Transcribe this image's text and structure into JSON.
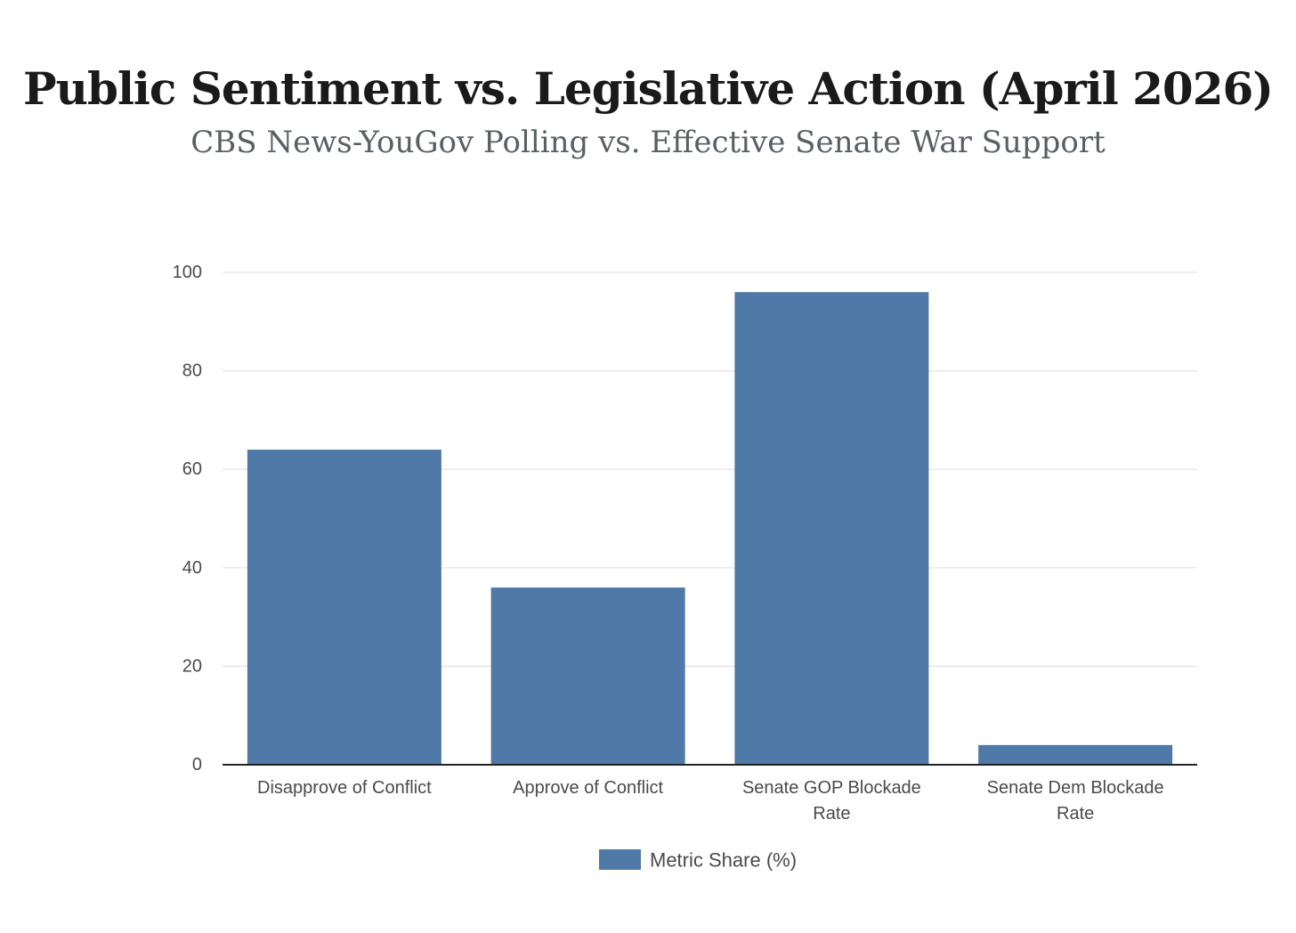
{
  "chart_data": {
    "type": "bar",
    "title": "Public Sentiment vs. Legislative Action (April 2026)",
    "subtitle": "CBS News-YouGov Polling vs. Effective Senate War Support",
    "categories": [
      [
        "Disapprove of Conflict"
      ],
      [
        "Approve of Conflict"
      ],
      [
        "Senate GOP Blockade",
        "Rate"
      ],
      [
        "Senate Dem Blockade",
        "Rate"
      ]
    ],
    "series": [
      {
        "name": "Metric Share (%)",
        "values": [
          64,
          36,
          96,
          4
        ]
      }
    ],
    "yticks": [
      "0",
      "20",
      "40",
      "60",
      "80",
      "100"
    ],
    "ylim": [
      0,
      100
    ],
    "xlabel": "",
    "ylabel": "",
    "grid": true,
    "legend_position": "bottom-center",
    "colors": {
      "bar": "#4f79a6",
      "grid": "#e4e4e4",
      "axis": "#222222"
    }
  }
}
